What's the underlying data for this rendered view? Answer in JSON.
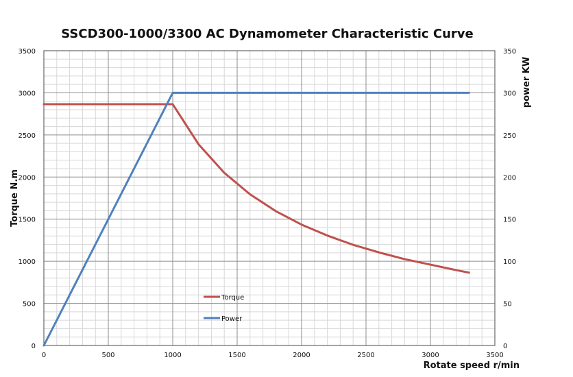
{
  "chart_data": {
    "type": "line",
    "title": "SSCD300-1000/3300 AC Dynamometer Characteristic Curve",
    "xlabel": "Rotate speed r/min",
    "ylabel_left": "Torque N.m",
    "ylabel_right": "power KW",
    "xlim": [
      0,
      3500
    ],
    "ylim_left": [
      0,
      3500
    ],
    "ylim_right": [
      0,
      350
    ],
    "x_ticks": [
      0,
      500,
      1000,
      1500,
      2000,
      2500,
      3000,
      3500
    ],
    "y_left_ticks": [
      0,
      500,
      1000,
      1500,
      2000,
      2500,
      3000,
      3500
    ],
    "y_right_ticks": [
      0,
      50,
      100,
      150,
      200,
      250,
      300,
      350
    ],
    "grid": true,
    "legend_position": "center-left inside plot",
    "series": [
      {
        "name": "Torque",
        "axis": "left",
        "color": "#c0504d",
        "points": [
          [
            0,
            2865
          ],
          [
            1000,
            2865
          ],
          [
            1200,
            2390
          ],
          [
            1400,
            2050
          ],
          [
            1600,
            1795
          ],
          [
            1800,
            1595
          ],
          [
            2000,
            1435
          ],
          [
            2200,
            1305
          ],
          [
            2400,
            1195
          ],
          [
            2600,
            1105
          ],
          [
            2800,
            1025
          ],
          [
            3000,
            960
          ],
          [
            3200,
            895
          ],
          [
            3300,
            865
          ]
        ]
      },
      {
        "name": "Power",
        "axis": "right",
        "color": "#4f81bd",
        "points": [
          [
            0,
            0
          ],
          [
            1000,
            300
          ],
          [
            3300,
            300
          ]
        ]
      }
    ]
  },
  "colors": {
    "grid_major": "#8c8c8c",
    "grid_minor": "#d7d7d7",
    "axis": "#666666",
    "text": "#111111"
  }
}
